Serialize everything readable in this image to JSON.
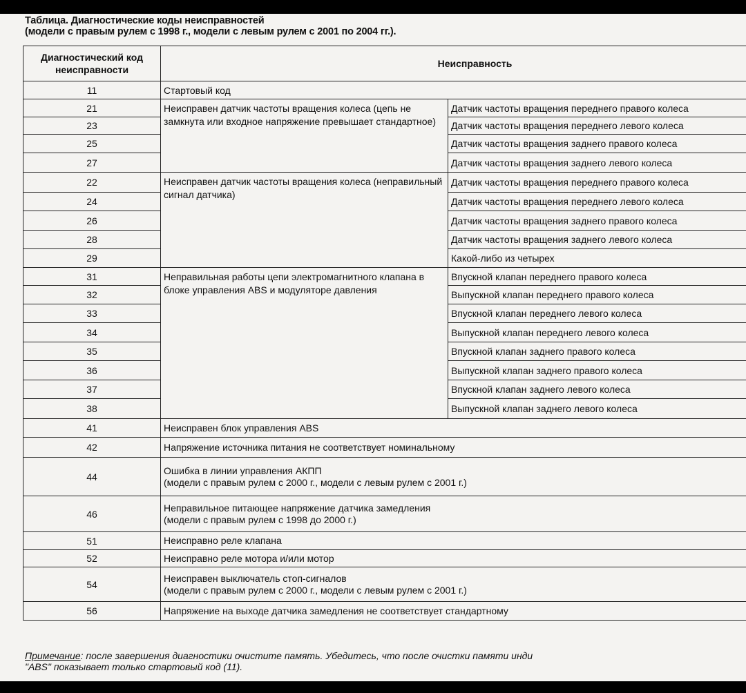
{
  "title": {
    "line1": "Таблица. Диагностические коды неисправностей",
    "line2": "(модели с правым рулем с 1998 г., модели с левым рулем с 2001 по 2004 гг.)."
  },
  "table": {
    "headers": {
      "code": "Диагностический код неисправности",
      "fault": "Неисправность"
    },
    "row_11": {
      "code": "11",
      "text": "Стартовый код"
    },
    "group_a": {
      "desc": "Неисправен датчик частоты вращения колеса (цепь не замкнута или входное напряжение превышает стандартное)",
      "rows": [
        {
          "code": "21",
          "text": "Датчик частоты вращения переднего правого колеса"
        },
        {
          "code": "23",
          "text": "Датчик частоты вращения переднего левого колеса"
        },
        {
          "code": "25",
          "text": "Датчик частоты вращения заднего правого колеса"
        },
        {
          "code": "27",
          "text": "Датчик частоты вращения заднего левого колеса"
        }
      ]
    },
    "group_b": {
      "desc": "Неисправен датчик частоты вращения колеса (неправильный сигнал датчика)",
      "rows": [
        {
          "code": "22",
          "text": "Датчик частоты вращения переднего правого колеса"
        },
        {
          "code": "24",
          "text": "Датчик частоты вращения переднего левого колеса"
        },
        {
          "code": "26",
          "text": "Датчик частоты вращения заднего правого колеса"
        },
        {
          "code": "28",
          "text": "Датчик частоты вращения заднего левого колеса"
        },
        {
          "code": "29",
          "text": "Какой-либо из четырех"
        }
      ]
    },
    "group_c": {
      "desc": "Неправильная работы цепи электромагнитного клапана в блоке управления ABS и модуляторе давления",
      "rows": [
        {
          "code": "31",
          "text": "Впускной клапан переднего правого колеса"
        },
        {
          "code": "32",
          "text": "Выпускной клапан переднего правого колеса"
        },
        {
          "code": "33",
          "text": "Впускной клапан переднего левого колеса"
        },
        {
          "code": "34",
          "text": "Выпускной клапан переднего левого колеса"
        },
        {
          "code": "35",
          "text": "Впускной клапан заднего правого колеса"
        },
        {
          "code": "36",
          "text": "Выпускной клапан заднего правого колеса"
        },
        {
          "code": "37",
          "text": "Впускной клапан заднего левого колеса"
        },
        {
          "code": "38",
          "text": "Выпускной клапан заднего левого колеса"
        }
      ]
    },
    "rest": [
      {
        "code": "41",
        "text": "Неисправен блок управления ABS",
        "note": ""
      },
      {
        "code": "42",
        "text": "Напряжение источника питания не соответствует номинальному",
        "note": ""
      },
      {
        "code": "44",
        "text": "Ошибка в линии управления АКПП",
        "note": "(модели с правым рулем с 2000 г., модели с левым рулем с 2001 г.)"
      },
      {
        "code": "46",
        "text": "Неправильное питающее напряжение датчика замедления",
        "note": "(модели с правым рулем с 1998 до 2000 г.)"
      },
      {
        "code": "51",
        "text": "Неисправно реле клапана",
        "note": ""
      },
      {
        "code": "52",
        "text": "Неисправно реле мотора и/или мотор",
        "note": ""
      },
      {
        "code": "54",
        "text": "Неисправен выключатель стоп-сигналов",
        "note": "(модели с правым рулем с 2000 г., модели с левым рулем с 2001 г.)"
      },
      {
        "code": "56",
        "text": "Напряжение на выходе датчика замедления не соответствует стандартному",
        "note": ""
      }
    ]
  },
  "note": {
    "label": "Примечание",
    "text": ": после завершения диагностики очистите память. Убедитесь, что после очистки памяти инди",
    "line2": "\"ABS\" показывает только стартовый код (11)."
  }
}
